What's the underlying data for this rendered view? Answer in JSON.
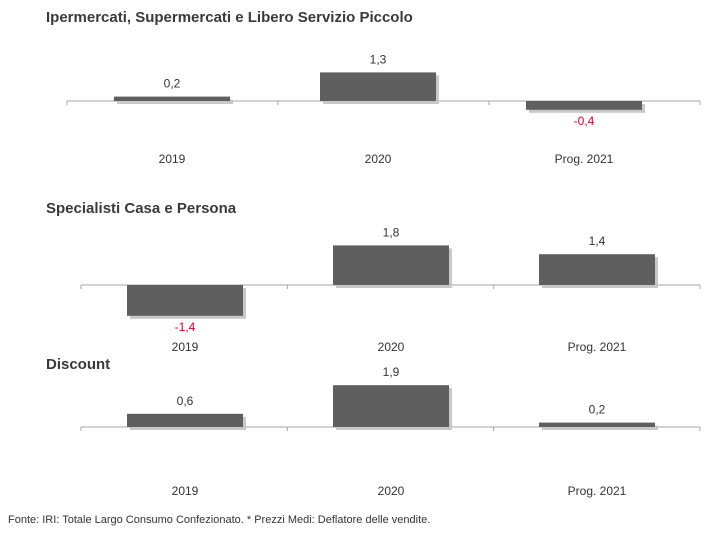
{
  "colors": {
    "bar": "#5f5f5f",
    "shadow": "#c8c8c8",
    "axis": "#a6a6a6",
    "positive": "#333333",
    "negative": "#e3001b"
  },
  "chart_data": [
    {
      "type": "bar",
      "title": "Ipermercati,  Supermercati e Libero Servizio Piccolo",
      "categories": [
        "2019",
        "2020",
        "Prog. 2021"
      ],
      "values": [
        0.2,
        1.3,
        -0.4
      ],
      "value_labels": [
        "0,2",
        "1,3",
        "-0,4"
      ],
      "xlabel": "",
      "ylabel": "",
      "ylim": [
        -1.5,
        2.0
      ]
    },
    {
      "type": "bar",
      "title": "Specialisti  Casa e Persona",
      "categories": [
        "2019",
        "2020",
        "Prog. 2021"
      ],
      "values": [
        -1.4,
        1.8,
        1.4
      ],
      "value_labels": [
        "-1,4",
        "1,8",
        "1,4"
      ],
      "xlabel": "",
      "ylabel": "",
      "ylim": [
        -1.5,
        2.0
      ]
    },
    {
      "type": "bar",
      "title": "Discount",
      "categories": [
        "2019",
        "2020",
        "Prog. 2021"
      ],
      "values": [
        0.6,
        1.9,
        0.2
      ],
      "value_labels": [
        "0,6",
        "1,9",
        "0,2"
      ],
      "xlabel": "",
      "ylabel": "",
      "ylim": [
        -1.5,
        2.0
      ]
    }
  ],
  "footer": {
    "source": "Fonte: IRI: Totale Largo Consumo Confezionato.  * Prezzi  Medi: Deflatore delle vendite."
  }
}
